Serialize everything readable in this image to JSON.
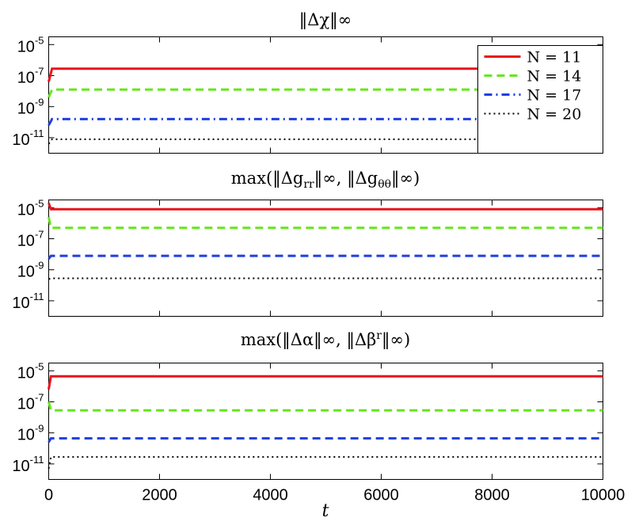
{
  "chart_data": [
    {
      "type": "line",
      "title": "‖Δχ‖∞",
      "xlim": [
        0,
        10000
      ],
      "ylim_log10": [
        -12,
        -4.5
      ],
      "yticks": [
        {
          "base": "10",
          "exp": "-5",
          "value": -5
        },
        {
          "base": "10",
          "exp": "-7",
          "value": -7
        },
        {
          "base": "10",
          "exp": "-9",
          "value": -9
        },
        {
          "base": "10",
          "exp": "-11",
          "value": -11
        }
      ],
      "grid": false,
      "legend": "top-right",
      "series": [
        {
          "name": "N = 11",
          "color": "#e8141c",
          "style": "solid",
          "x": [
            0,
            60,
            10000
          ],
          "y_log10": [
            -7.4,
            -6.55,
            -6.55
          ]
        },
        {
          "name": "N = 14",
          "color": "#66e61b",
          "style": "dashed",
          "x": [
            0,
            60,
            10000
          ],
          "y_log10": [
            -8.4,
            -7.9,
            -7.9
          ]
        },
        {
          "name": "N = 17",
          "color": "#1f3fe0",
          "style": "dashdot",
          "x": [
            0,
            60,
            10000
          ],
          "y_log10": [
            -10.2,
            -9.8,
            -9.8
          ]
        },
        {
          "name": "N = 20",
          "color": "#000000",
          "style": "dotted",
          "x": [
            0,
            60,
            10000
          ],
          "y_log10": [
            -11.4,
            -11.1,
            -11.1
          ]
        }
      ]
    },
    {
      "type": "line",
      "title": "max(‖Δg_rr‖∞, ‖Δg_θθ‖∞)",
      "title_parts": {
        "pre": "max(‖Δg",
        "sub1": "rr",
        "mid": "‖∞, ‖Δg",
        "sub2": "θθ",
        "post": "‖∞)"
      },
      "xlim": [
        0,
        10000
      ],
      "ylim_log10": [
        -12,
        -4.5
      ],
      "yticks": [
        {
          "base": "10",
          "exp": "-5",
          "value": -5
        },
        {
          "base": "10",
          "exp": "-7",
          "value": -7
        },
        {
          "base": "10",
          "exp": "-9",
          "value": -9
        },
        {
          "base": "10",
          "exp": "-11",
          "value": -11
        }
      ],
      "grid": false,
      "series": [
        {
          "name": "N = 11",
          "color": "#e8141c",
          "style": "solid",
          "x": [
            0,
            40,
            10000
          ],
          "y_log10": [
            -4.7,
            -5.1,
            -5.1
          ]
        },
        {
          "name": "N = 14",
          "color": "#66e61b",
          "style": "dashed",
          "x": [
            0,
            40,
            10000
          ],
          "y_log10": [
            -5.6,
            -6.3,
            -6.3
          ]
        },
        {
          "name": "N = 17",
          "color": "#1f3fe0",
          "style": "dashed",
          "x": [
            0,
            40,
            10000
          ],
          "y_log10": [
            -8.3,
            -8.1,
            -8.1
          ]
        },
        {
          "name": "N = 20",
          "color": "#000000",
          "style": "dotted",
          "x": [
            0,
            40,
            10000
          ],
          "y_log10": [
            -9.6,
            -9.55,
            -9.55
          ]
        }
      ]
    },
    {
      "type": "line",
      "title": "max(‖Δα‖∞, ‖Δβ^r‖∞)",
      "title_parts": {
        "pre": "max(‖Δα‖∞, ‖Δβ",
        "sup": "r",
        "post": "‖∞)"
      },
      "xlim": [
        0,
        10000
      ],
      "ylim_log10": [
        -12,
        -4.5
      ],
      "yticks": [
        {
          "base": "10",
          "exp": "-5",
          "value": -5
        },
        {
          "base": "10",
          "exp": "-7",
          "value": -7
        },
        {
          "base": "10",
          "exp": "-9",
          "value": -9
        },
        {
          "base": "10",
          "exp": "-11",
          "value": -11
        }
      ],
      "xticks": [
        0,
        2000,
        4000,
        6000,
        8000,
        10000
      ],
      "xlabel": "t",
      "grid": false,
      "series": [
        {
          "name": "N = 11",
          "color": "#e8141c",
          "style": "solid",
          "x": [
            0,
            40,
            10000
          ],
          "y_log10": [
            -6.2,
            -5.35,
            -5.35
          ]
        },
        {
          "name": "N = 14",
          "color": "#66e61b",
          "style": "dashed",
          "x": [
            0,
            40,
            10000
          ],
          "y_log10": [
            -7.0,
            -7.55,
            -7.55
          ]
        },
        {
          "name": "N = 17",
          "color": "#1f3fe0",
          "style": "dashed",
          "x": [
            0,
            40,
            10000
          ],
          "y_log10": [
            -9.6,
            -9.35,
            -9.35
          ]
        },
        {
          "name": "N = 20",
          "color": "#000000",
          "style": "dotted",
          "x": [
            0,
            40,
            10000
          ],
          "y_log10": [
            -11.3,
            -10.55,
            -10.55
          ]
        }
      ]
    }
  ]
}
